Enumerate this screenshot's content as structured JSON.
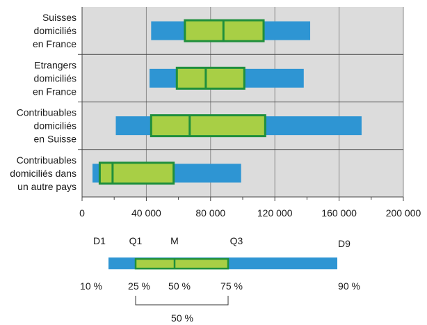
{
  "chart_data": {
    "type": "box",
    "orientation": "horizontal",
    "categories": [
      [
        "Suisses",
        "domiciliés",
        "en France"
      ],
      [
        "Etrangers",
        "domiciliés",
        "en France"
      ],
      [
        "Contribuables",
        "domiciliés",
        "en Suisse"
      ],
      [
        "Contribuables",
        "domiciliés dans",
        "un autre pays"
      ]
    ],
    "series": [
      {
        "d1": 43000,
        "q1": 64000,
        "median": 88000,
        "q3": 113000,
        "d9": 142000
      },
      {
        "d1": 42000,
        "q1": 59000,
        "median": 77000,
        "q3": 101000,
        "d9": 138000
      },
      {
        "d1": 21000,
        "q1": 43000,
        "median": 67000,
        "q3": 114000,
        "d9": 174000
      },
      {
        "d1": 6500,
        "q1": 11000,
        "median": 19000,
        "q3": 57000,
        "d9": 99000
      }
    ],
    "xlim": [
      0,
      200000
    ],
    "xticks": [
      0,
      40000,
      80000,
      120000,
      160000,
      200000
    ],
    "xtick_labels": [
      "0",
      "40 000",
      "80 000",
      "120 000",
      "160 000",
      "200 000"
    ],
    "grid": "vertical",
    "colors": {
      "decile_bar": "#2e95d3",
      "iqr_fill": "#a8cf45",
      "iqr_edge": "#1f8f3c",
      "plot_bg": "#dcdcdc",
      "grid": "#8a8a8a"
    }
  },
  "legend": {
    "top_labels": [
      "D1",
      "Q1",
      "M",
      "Q3",
      "D9"
    ],
    "bottom_labels": [
      "10 %",
      "25 %",
      "50 %",
      "75 %",
      "90 %"
    ],
    "bracket_label": "50 %"
  }
}
